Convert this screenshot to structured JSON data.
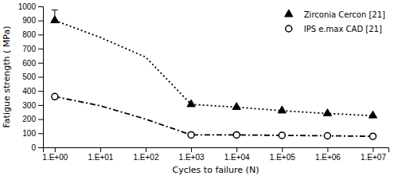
{
  "chart_data": {
    "type": "line",
    "xlabel": "Cycles to failure (N)",
    "ylabel": "Fatigue strength ( MPa)",
    "log": "x",
    "grid": false,
    "legend": "upper-right",
    "xlim": [
      0.55,
      22000000
    ],
    "xticks": [
      {
        "value": 1,
        "label": "1.E+00"
      },
      {
        "value": 10,
        "label": "1.E+01"
      },
      {
        "value": 100,
        "label": "1.E+02"
      },
      {
        "value": 1000,
        "label": "1.E+03"
      },
      {
        "value": 10000,
        "label": "1.E+04"
      },
      {
        "value": 100000,
        "label": "1.E+05"
      },
      {
        "value": 1000000,
        "label": "1.E+06"
      },
      {
        "value": 10000000,
        "label": "1.E+07"
      }
    ],
    "ylim": [
      0,
      1000
    ],
    "yticks": [
      0,
      100,
      200,
      300,
      400,
      500,
      600,
      700,
      800,
      900,
      1000
    ],
    "series": [
      {
        "name": "Zirconia Cercon [21]",
        "color": "#000000",
        "marker": "triangle",
        "line_style": "dotted",
        "x": [
          1,
          10,
          100,
          1000,
          10000,
          100000,
          1000000,
          10000000
        ],
        "values": [
          900,
          780,
          640,
          305,
          285,
          260,
          240,
          225
        ],
        "marked_x": [
          1,
          1000,
          10000,
          100000,
          1000000,
          10000000
        ],
        "marked_values": [
          900,
          305,
          285,
          260,
          240,
          225
        ],
        "error": {
          "x": [
            1
          ],
          "values": [
            900
          ],
          "lower": [
            0
          ],
          "upper": [
            75
          ]
        }
      },
      {
        "name": "IPS e.max CAD [21]",
        "color": "#000000",
        "marker": "circle-open",
        "line_style": "dashdot",
        "x": [
          1,
          10,
          100,
          1000,
          10000,
          100000,
          1000000,
          10000000
        ],
        "values": [
          360,
          295,
          200,
          88,
          88,
          85,
          82,
          78
        ],
        "marked_x": [
          1,
          1000,
          10000,
          100000,
          1000000,
          10000000
        ],
        "marked_values": [
          360,
          88,
          88,
          85,
          82,
          78
        ]
      }
    ]
  }
}
